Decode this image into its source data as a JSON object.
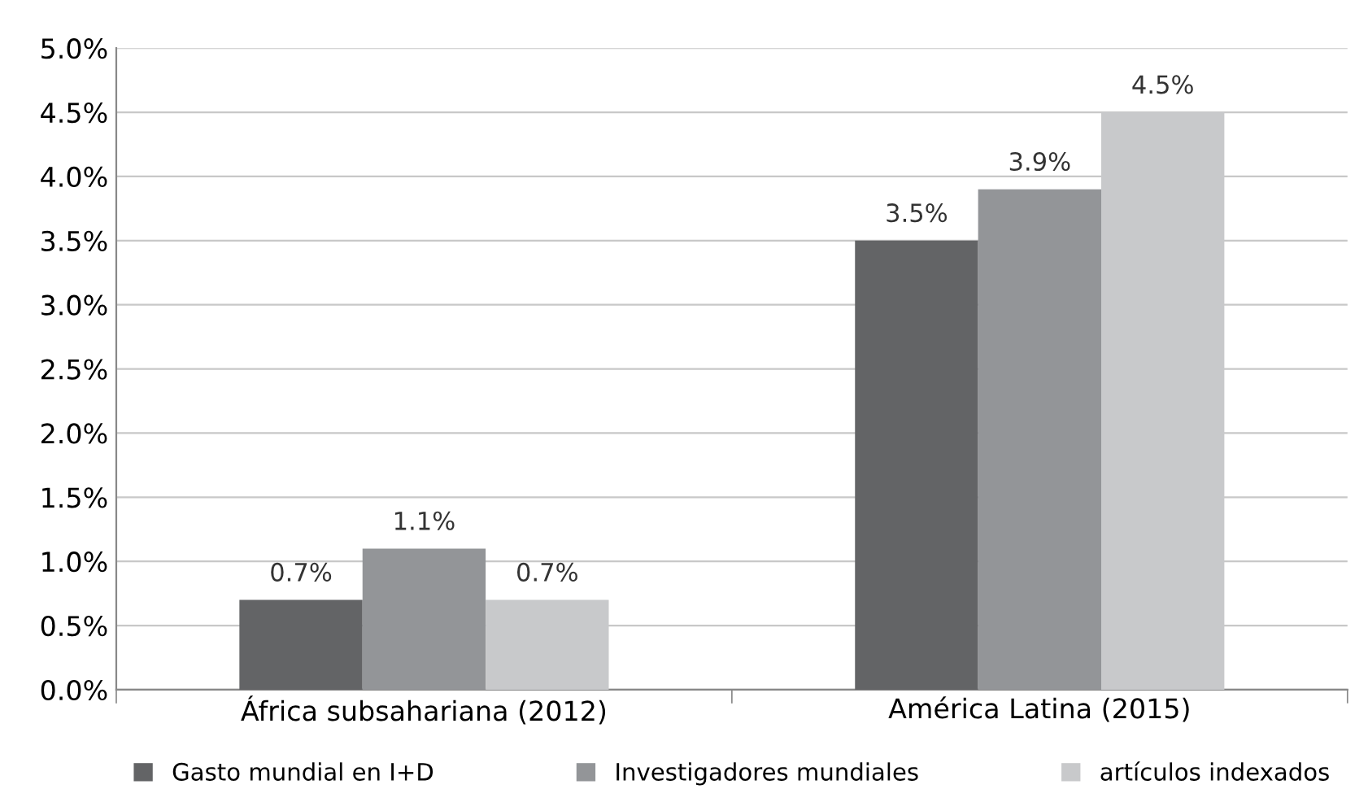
{
  "chart_data": {
    "type": "bar",
    "categories": [
      "África subsahariana (2012)",
      "América Latina (2015)"
    ],
    "series": [
      {
        "name": "Gasto mundial en I+D",
        "color": "#636466",
        "values": [
          0.7,
          3.5
        ]
      },
      {
        "name": "Investigadores mundiales",
        "color": "#939598",
        "values": [
          1.1,
          3.9
        ]
      },
      {
        "name": "artículos indexados",
        "color": "#c8c9cb",
        "values": [
          0.7,
          4.5
        ]
      }
    ],
    "ylim": [
      0,
      5
    ],
    "yticks": [
      {
        "value": 0,
        "label": "0.0%"
      },
      {
        "value": 0.5,
        "label": "0.5%"
      },
      {
        "value": 1,
        "label": "1.0%"
      },
      {
        "value": 1.5,
        "label": "1.5%"
      },
      {
        "value": 2,
        "label": "2.0%"
      },
      {
        "value": 2.5,
        "label": "2.5%"
      },
      {
        "value": 3,
        "label": "3.0%"
      },
      {
        "value": 3.5,
        "label": "3.5%"
      },
      {
        "value": 4,
        "label": "4.0%"
      },
      {
        "value": 4.5,
        "label": "4.5%"
      },
      {
        "value": 5,
        "label": "5.0%"
      }
    ],
    "value_labels": [
      [
        "0.7%",
        "3.5%"
      ],
      [
        "1.1%",
        "3.9%"
      ],
      [
        "0.7%",
        "4.5%"
      ]
    ],
    "grid": "y",
    "legend": "bottom"
  }
}
